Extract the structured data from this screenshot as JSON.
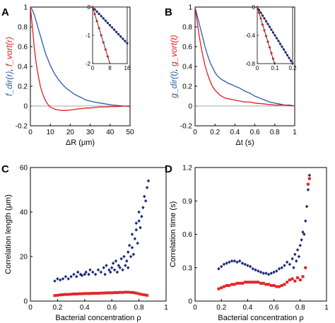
{
  "colors": {
    "blue": "#2a5aa8",
    "red": "#e02020",
    "navy": "#1a2a78",
    "redMarker": "#e02828",
    "insetLine": "#111111",
    "zeroLine": "#888888"
  },
  "chart_data": [
    {
      "panel": "A",
      "type": "line",
      "ylabel_blue": "f_dir(r)",
      "ylabel_sep": ", ",
      "ylabel_red": "f_vort(r)",
      "xlabel": "ΔR (μm)",
      "xlim": [
        0,
        50
      ],
      "ylim": [
        -0.2,
        1.0
      ],
      "xticks": [
        0,
        10,
        20,
        30,
        40,
        50
      ],
      "yticks": [
        -0.2,
        0,
        0.2,
        0.4,
        0.6,
        0.8,
        1
      ],
      "series": [
        {
          "color": "blue",
          "x": [
            0,
            1,
            2,
            3,
            4,
            5,
            6,
            7,
            8,
            10,
            12,
            14,
            16,
            18,
            20,
            22,
            24,
            26,
            28,
            30,
            32,
            35,
            38,
            41,
            44,
            47,
            50
          ],
          "y": [
            1.0,
            0.97,
            0.92,
            0.85,
            0.78,
            0.71,
            0.64,
            0.57,
            0.51,
            0.41,
            0.33,
            0.27,
            0.22,
            0.18,
            0.15,
            0.12,
            0.1,
            0.08,
            0.06,
            0.05,
            0.04,
            0.03,
            0.02,
            0.01,
            0.005,
            0.0,
            -0.005
          ]
        },
        {
          "color": "red",
          "x": [
            0,
            1,
            2,
            3,
            4,
            5,
            6,
            7,
            8,
            9,
            10,
            12,
            14,
            16,
            18,
            20,
            22,
            24,
            26,
            28,
            30,
            32,
            35,
            38,
            41,
            44,
            47,
            50
          ],
          "y": [
            1.0,
            0.8,
            0.58,
            0.42,
            0.3,
            0.2,
            0.13,
            0.08,
            0.04,
            0.01,
            -0.01,
            -0.03,
            -0.04,
            -0.045,
            -0.045,
            -0.04,
            -0.035,
            -0.03,
            -0.025,
            -0.02,
            -0.02,
            -0.015,
            -0.01,
            -0.01,
            -0.005,
            -0.005,
            0.0,
            0.0
          ]
        }
      ],
      "inset": {
        "xlim": [
          0,
          16
        ],
        "ylim": [
          -2,
          0
        ],
        "xticks": [
          0,
          8,
          16
        ],
        "yticks": [
          0,
          -1,
          -2
        ],
        "blue_x": [
          0,
          1,
          2,
          3,
          4,
          5,
          6,
          7,
          8,
          9,
          10,
          11,
          12,
          13,
          14,
          15,
          16
        ],
        "blue_y": [
          0,
          -0.08,
          -0.16,
          -0.24,
          -0.32,
          -0.4,
          -0.48,
          -0.56,
          -0.64,
          -0.72,
          -0.8,
          -0.88,
          -0.96,
          -1.04,
          -1.12,
          -1.2,
          -1.28
        ],
        "red_x": [
          0,
          1,
          2,
          3,
          4,
          5,
          6,
          7
        ],
        "red_y": [
          0,
          -0.25,
          -0.5,
          -0.75,
          -1.0,
          -1.25,
          -1.5,
          -1.75
        ],
        "line_blue": [
          [
            0,
            0
          ],
          [
            16,
            -1.3
          ]
        ],
        "line_red": [
          [
            0,
            0
          ],
          [
            8,
            -2.0
          ]
        ]
      }
    },
    {
      "panel": "B",
      "type": "line",
      "ylabel_blue": "g_dir(t)",
      "ylabel_sep": ", ",
      "ylabel_red": "g_vort(t)",
      "xlabel": "Δt (s)",
      "xlim": [
        0,
        1
      ],
      "ylim": [
        -0.2,
        1.0
      ],
      "xticks": [
        0,
        0.2,
        0.4,
        0.6,
        0.8,
        1
      ],
      "yticks": [
        -0.2,
        0,
        0.2,
        0.4,
        0.6,
        0.8,
        1
      ],
      "series": [
        {
          "color": "blue",
          "x": [
            0,
            0.02,
            0.04,
            0.06,
            0.08,
            0.1,
            0.12,
            0.14,
            0.16,
            0.18,
            0.2,
            0.22,
            0.25,
            0.28,
            0.3,
            0.33,
            0.36,
            0.4,
            0.45,
            0.5,
            0.55,
            0.6,
            0.65,
            0.7,
            0.75,
            0.8,
            0.85,
            0.9,
            0.95,
            1.0
          ],
          "y": [
            1.0,
            0.92,
            0.84,
            0.76,
            0.68,
            0.6,
            0.53,
            0.47,
            0.42,
            0.38,
            0.34,
            0.31,
            0.28,
            0.26,
            0.25,
            0.23,
            0.22,
            0.2,
            0.18,
            0.15,
            0.13,
            0.1,
            0.08,
            0.06,
            0.04,
            0.03,
            0.02,
            0.01,
            0.01,
            0.0
          ]
        },
        {
          "color": "red",
          "x": [
            0,
            0.02,
            0.04,
            0.06,
            0.08,
            0.1,
            0.12,
            0.14,
            0.16,
            0.18,
            0.2,
            0.25,
            0.3,
            0.35,
            0.4,
            0.45,
            0.5,
            0.55,
            0.6,
            0.7,
            0.8,
            0.9,
            1.0
          ],
          "y": [
            1.0,
            0.86,
            0.72,
            0.6,
            0.5,
            0.41,
            0.34,
            0.28,
            0.23,
            0.19,
            0.16,
            0.11,
            0.08,
            0.07,
            0.06,
            0.05,
            0.04,
            0.04,
            0.03,
            0.02,
            0.01,
            0.01,
            0.0
          ]
        }
      ],
      "inset": {
        "xlim": [
          0,
          0.2
        ],
        "ylim": [
          -0.8,
          0
        ],
        "xticks": [
          0,
          0.1,
          0.2
        ],
        "yticks": [
          0,
          -0.4,
          -0.8
        ],
        "blue_x": [
          0,
          0.01,
          0.02,
          0.03,
          0.04,
          0.05,
          0.06,
          0.07,
          0.08,
          0.09,
          0.1,
          0.11,
          0.12,
          0.13,
          0.14,
          0.15,
          0.16,
          0.17,
          0.18,
          0.19,
          0.2
        ],
        "blue_y": [
          0,
          -0.04,
          -0.08,
          -0.12,
          -0.16,
          -0.2,
          -0.24,
          -0.28,
          -0.32,
          -0.36,
          -0.4,
          -0.44,
          -0.48,
          -0.52,
          -0.56,
          -0.6,
          -0.64,
          -0.68,
          -0.72,
          -0.76,
          -0.8
        ],
        "red_x": [
          0,
          0.01,
          0.02,
          0.03,
          0.04,
          0.05,
          0.06,
          0.07,
          0.08,
          0.09
        ],
        "red_y": [
          0,
          -0.08,
          -0.16,
          -0.25,
          -0.33,
          -0.41,
          -0.49,
          -0.57,
          -0.65,
          -0.73
        ],
        "line_blue": [
          [
            0,
            0
          ],
          [
            0.2,
            -0.8
          ]
        ],
        "line_red": [
          [
            0,
            0
          ],
          [
            0.1,
            -0.82
          ]
        ]
      }
    },
    {
      "panel": "C",
      "type": "scatter",
      "ylabel": "Correlation length (μm)",
      "xlabel": "Bacterial concentration ρ",
      "xlim": [
        0,
        1.0
      ],
      "ylim": [
        0,
        60
      ],
      "xticks": [
        0,
        0.2,
        0.4,
        0.6,
        0.8,
        1.0
      ],
      "yticks": [
        0,
        20,
        40,
        60
      ],
      "series": [
        {
          "color": "navy",
          "marker": "diamond",
          "x": [
            0.18,
            0.2,
            0.22,
            0.24,
            0.26,
            0.28,
            0.3,
            0.32,
            0.34,
            0.35,
            0.37,
            0.38,
            0.4,
            0.41,
            0.43,
            0.44,
            0.46,
            0.48,
            0.5,
            0.52,
            0.54,
            0.55,
            0.56,
            0.58,
            0.59,
            0.6,
            0.61,
            0.62,
            0.63,
            0.64,
            0.65,
            0.66,
            0.67,
            0.68,
            0.69,
            0.7,
            0.71,
            0.72,
            0.72,
            0.73,
            0.74,
            0.75,
            0.75,
            0.76,
            0.77,
            0.78,
            0.78,
            0.79,
            0.8,
            0.8,
            0.81,
            0.82,
            0.83,
            0.84,
            0.85,
            0.86,
            0.87
          ],
          "y": [
            9,
            10,
            9.5,
            10,
            11,
            10,
            11,
            12,
            11,
            13,
            12,
            11.5,
            12,
            13,
            12,
            14,
            13,
            12,
            14,
            13,
            15,
            12,
            16,
            14,
            13,
            15,
            17,
            14,
            18,
            13,
            16,
            15,
            19,
            14,
            20,
            16,
            18,
            22,
            15,
            25,
            20,
            24,
            30,
            21,
            28,
            32,
            35,
            26,
            36,
            40,
            33,
            38,
            42,
            47,
            45,
            51,
            54
          ]
        },
        {
          "color": "redMarker",
          "marker": "square",
          "x": [
            0.18,
            0.2,
            0.22,
            0.24,
            0.26,
            0.28,
            0.3,
            0.32,
            0.34,
            0.36,
            0.38,
            0.4,
            0.42,
            0.44,
            0.46,
            0.48,
            0.5,
            0.52,
            0.54,
            0.56,
            0.58,
            0.6,
            0.62,
            0.64,
            0.66,
            0.68,
            0.7,
            0.72,
            0.74,
            0.76,
            0.78,
            0.8,
            0.82,
            0.84,
            0.86
          ],
          "y": [
            2.5,
            2.6,
            2.8,
            2.9,
            3.0,
            3.0,
            3.1,
            3.2,
            3.2,
            3.3,
            3.3,
            3.4,
            3.4,
            3.4,
            3.5,
            3.5,
            3.5,
            3.6,
            3.6,
            3.7,
            3.7,
            3.7,
            3.8,
            3.8,
            3.9,
            3.9,
            4.0,
            4.0,
            3.9,
            3.8,
            3.6,
            3.3,
            3.0,
            2.8,
            2.6
          ]
        }
      ]
    },
    {
      "panel": "D",
      "type": "scatter",
      "ylabel": "Correlation time (s)",
      "xlabel": "Bacterial concentration ρ",
      "xlim": [
        0,
        1.0
      ],
      "ylim": [
        0,
        1.2
      ],
      "xticks": [
        0,
        0.2,
        0.4,
        0.6,
        0.8,
        1.0
      ],
      "yticks": [
        0,
        0.3,
        0.6,
        0.9,
        1.2
      ],
      "series": [
        {
          "color": "navy",
          "marker": "diamond",
          "x": [
            0.18,
            0.2,
            0.22,
            0.24,
            0.26,
            0.28,
            0.3,
            0.32,
            0.34,
            0.36,
            0.38,
            0.4,
            0.42,
            0.44,
            0.46,
            0.48,
            0.5,
            0.52,
            0.54,
            0.56,
            0.58,
            0.6,
            0.62,
            0.64,
            0.66,
            0.68,
            0.7,
            0.72,
            0.74,
            0.75,
            0.76,
            0.77,
            0.78,
            0.79,
            0.8,
            0.81,
            0.82,
            0.83,
            0.84,
            0.85,
            0.86,
            0.87
          ],
          "y": [
            0.29,
            0.31,
            0.33,
            0.34,
            0.35,
            0.36,
            0.36,
            0.35,
            0.36,
            0.34,
            0.33,
            0.32,
            0.31,
            0.29,
            0.28,
            0.27,
            0.26,
            0.25,
            0.25,
            0.24,
            0.25,
            0.26,
            0.27,
            0.29,
            0.3,
            0.32,
            0.35,
            0.33,
            0.38,
            0.3,
            0.42,
            0.36,
            0.46,
            0.4,
            0.5,
            0.55,
            0.62,
            0.6,
            0.72,
            0.85,
            1.0,
            1.13
          ]
        },
        {
          "color": "redMarker",
          "marker": "square",
          "x": [
            0.18,
            0.2,
            0.22,
            0.24,
            0.26,
            0.28,
            0.3,
            0.32,
            0.34,
            0.36,
            0.38,
            0.4,
            0.42,
            0.44,
            0.46,
            0.48,
            0.5,
            0.52,
            0.54,
            0.56,
            0.58,
            0.6,
            0.62,
            0.64,
            0.66,
            0.68,
            0.7,
            0.72,
            0.74,
            0.76,
            0.78,
            0.8,
            0.82,
            0.84,
            0.86,
            0.87
          ],
          "y": [
            0.11,
            0.12,
            0.13,
            0.14,
            0.14,
            0.15,
            0.15,
            0.16,
            0.16,
            0.16,
            0.17,
            0.17,
            0.17,
            0.17,
            0.17,
            0.17,
            0.16,
            0.16,
            0.15,
            0.15,
            0.14,
            0.14,
            0.13,
            0.13,
            0.14,
            0.15,
            0.17,
            0.19,
            0.2,
            0.18,
            0.21,
            0.19,
            0.22,
            0.3,
            1.05,
            1.1
          ]
        }
      ]
    }
  ]
}
